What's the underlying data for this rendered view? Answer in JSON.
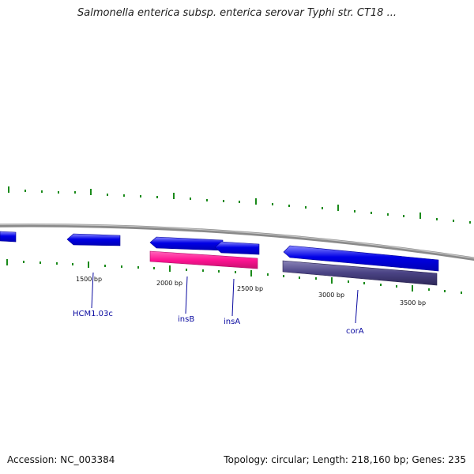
{
  "title": "Salmonella enterica subsp. enterica serovar Typhi str. CT18 ...",
  "footer": {
    "accession": "Accession: NC_003384",
    "summary": "Topology: circular; Length: 218,160 bp; Genes: 235"
  },
  "colors": {
    "backbone": "#8a8a8a",
    "gene_blue": "#0000e0",
    "gene_pink": "#ff1493",
    "gene_purple": "#46407a",
    "tick_green": "#1a8a1a",
    "label_blue": "#0a0aa0"
  },
  "scale_labels": [
    "1500 bp",
    "2000 bp",
    "2500 bp",
    "3000 bp",
    "3500 bp"
  ],
  "gene_labels": [
    "HCM1.03c",
    "insB",
    "insA",
    "corA"
  ]
}
